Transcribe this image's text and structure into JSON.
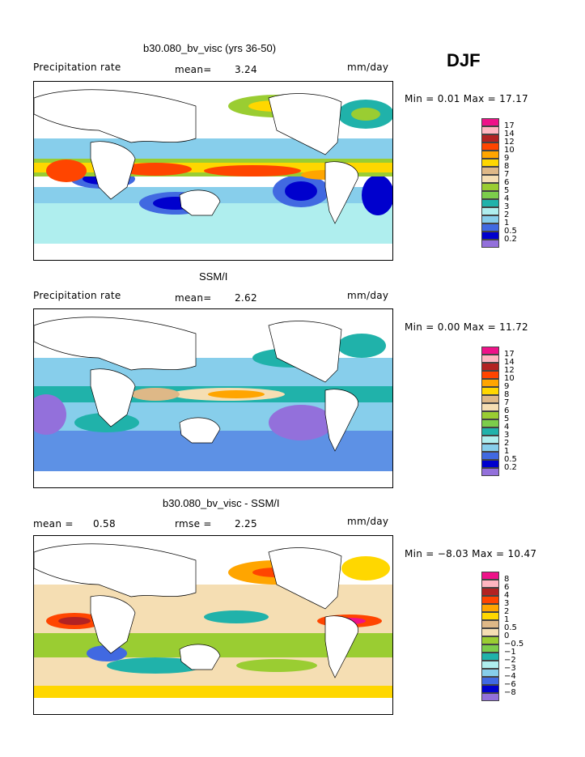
{
  "season": "DJF",
  "panels": [
    {
      "title": "b30.080_bv_visc (yrs 36-50)",
      "left_label": "Precipitation rate",
      "mean_text": "mean=",
      "mean_value": "3.24",
      "units": "mm/day",
      "minmax": "Min =   0.01 Max =  17.17",
      "legend_labels": [
        "17",
        "14",
        "12",
        "10",
        "9",
        "8",
        "7",
        "6",
        "5",
        "4",
        "3",
        "2",
        "1",
        "0.5",
        "0.2"
      ],
      "legend_colors": [
        "#ee1289",
        "#ffb6c1",
        "#b22222",
        "#ff4500",
        "#ffa500",
        "#ffd700",
        "#deb887",
        "#f5deb3",
        "#9acd32",
        "#7ccd4b",
        "#20b2aa",
        "#afeeee",
        "#87ceeb",
        "#4169e1",
        "#0000cd",
        "#9370db"
      ]
    },
    {
      "title": "SSM/I",
      "left_label": "Precipitation rate",
      "mean_text": "mean=",
      "mean_value": "2.62",
      "units": "mm/day",
      "minmax": "Min =   0.00 Max =  11.72",
      "legend_labels": [
        "17",
        "14",
        "12",
        "10",
        "9",
        "8",
        "7",
        "6",
        "5",
        "4",
        "3",
        "2",
        "1",
        "0.5",
        "0.2"
      ],
      "legend_colors": [
        "#ee1289",
        "#ffb6c1",
        "#b22222",
        "#ff4500",
        "#ffa500",
        "#ffd700",
        "#deb887",
        "#f5deb3",
        "#9acd32",
        "#7ccd4b",
        "#20b2aa",
        "#afeeee",
        "#87ceeb",
        "#4169e1",
        "#0000cd",
        "#9370db"
      ]
    },
    {
      "title": "b30.080_bv_visc - SSM/I",
      "left_label": "mean =",
      "mean_text": "rmse =",
      "left_value": "0.58",
      "mean_value": "2.25",
      "units": "mm/day",
      "minmax": "Min =  −8.03 Max =  10.47",
      "legend_labels": [
        "8",
        "6",
        "4",
        "3",
        "2",
        "1",
        "0.5",
        "0",
        "−0.5",
        "−1",
        "−2",
        "−3",
        "−4",
        "−6",
        "−8"
      ],
      "legend_colors": [
        "#ee1289",
        "#ffb6c1",
        "#b22222",
        "#ff4500",
        "#ffa500",
        "#ffd700",
        "#deb887",
        "#f5deb3",
        "#9acd32",
        "#7ccd4b",
        "#20b2aa",
        "#afeeee",
        "#87ceeb",
        "#4169e1",
        "#0000cd",
        "#9370db"
      ]
    }
  ]
}
